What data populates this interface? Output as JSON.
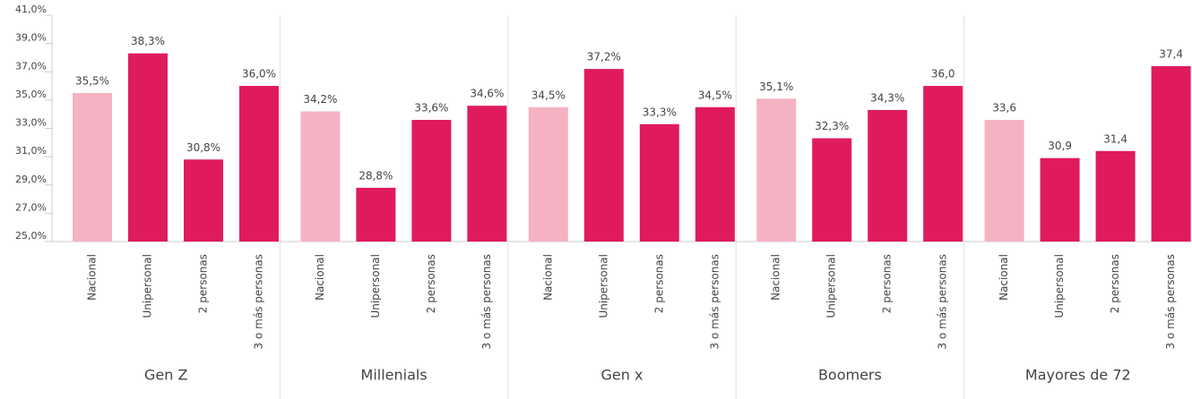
{
  "chart_data": {
    "type": "bar",
    "categories": [
      "Gen Z",
      "Millenials",
      "Gen x",
      "Boomers",
      "Mayores de 72"
    ],
    "series": [
      {
        "name": "Nacional",
        "color": "#f5b2c3",
        "values": [
          35.5,
          34.2,
          34.5,
          35.1,
          33.6
        ],
        "value_labels": [
          "35,5%",
          "34,2%",
          "34,5%",
          "35,1%",
          "33,6"
        ]
      },
      {
        "name": "Unipersonal",
        "color": "#e01a5e",
        "values": [
          38.3,
          28.8,
          37.2,
          32.3,
          30.9
        ],
        "value_labels": [
          "38,3%",
          "28,8%",
          "37,2%",
          "32,3%",
          "30,9"
        ]
      },
      {
        "name": "2 personas",
        "color": "#e01a5e",
        "values": [
          30.8,
          33.6,
          33.3,
          34.3,
          31.4
        ],
        "value_labels": [
          "30,8%",
          "33,6%",
          "33,3%",
          "34,3%",
          "31,4"
        ]
      },
      {
        "name": "3 o más personas",
        "color": "#e01a5e",
        "values": [
          36.0,
          34.6,
          34.5,
          36.0,
          37.4
        ],
        "value_labels": [
          "36,0%",
          "34,6%",
          "34,5%",
          "36,0",
          "37,4"
        ]
      }
    ],
    "ylim": [
      25,
      41
    ],
    "yticks": [
      {
        "value": 25,
        "label": "25,0%"
      },
      {
        "value": 27,
        "label": "27,0%"
      },
      {
        "value": 29,
        "label": "29,0%"
      },
      {
        "value": 31,
        "label": "31,0%"
      },
      {
        "value": 33,
        "label": "33,0%"
      },
      {
        "value": 35,
        "label": "35,0%"
      },
      {
        "value": 37,
        "label": "37,0%"
      },
      {
        "value": 39,
        "label": "39,0%"
      },
      {
        "value": 41,
        "label": "41,0%"
      }
    ]
  }
}
